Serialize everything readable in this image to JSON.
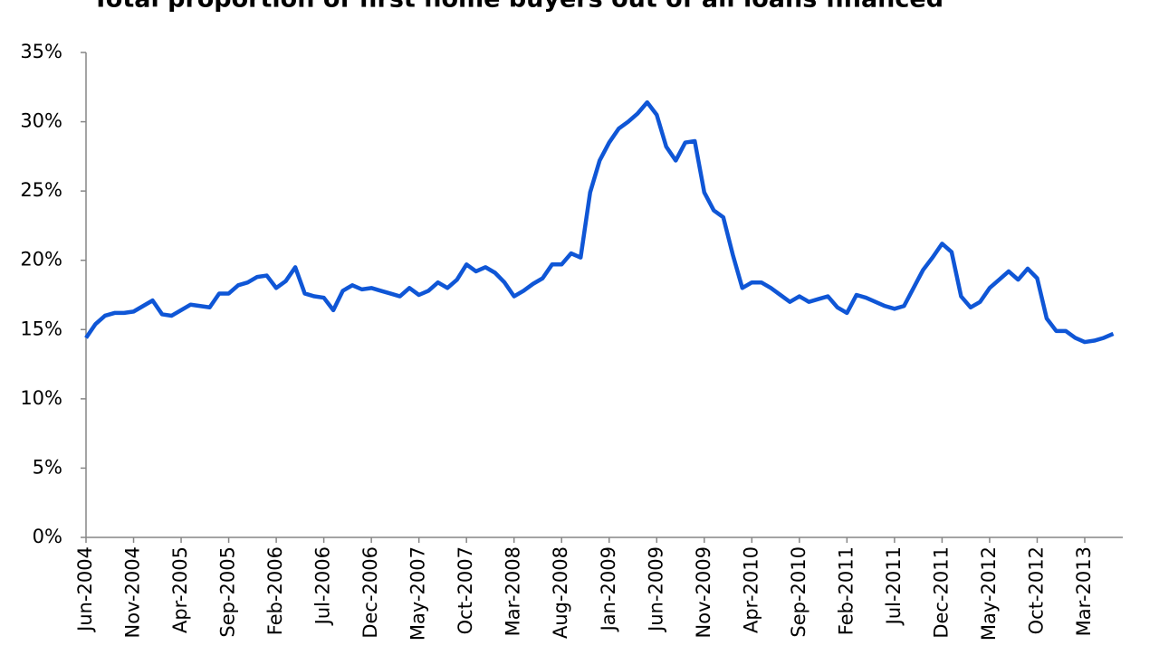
{
  "chart_data": {
    "type": "line",
    "title": "Total proportion of first home buyers out of all loans financed",
    "categories": [
      "Jun-2004",
      null,
      null,
      null,
      null,
      "Nov-2004",
      null,
      null,
      null,
      null,
      "Apr-2005",
      null,
      null,
      null,
      null,
      "Sep-2005",
      null,
      null,
      null,
      null,
      "Feb-2006",
      null,
      null,
      null,
      null,
      "Jul-2006",
      null,
      null,
      null,
      null,
      "Dec-2006",
      null,
      null,
      null,
      null,
      "May-2007",
      null,
      null,
      null,
      null,
      "Oct-2007",
      null,
      null,
      null,
      null,
      "Mar-2008",
      null,
      null,
      null,
      null,
      "Aug-2008",
      null,
      null,
      null,
      null,
      "Jan-2009",
      null,
      null,
      null,
      null,
      "Jun-2009",
      null,
      null,
      null,
      null,
      "Nov-2009",
      null,
      null,
      null,
      null,
      "Apr-2010",
      null,
      null,
      null,
      null,
      "Sep-2010",
      null,
      null,
      null,
      null,
      "Feb-2011",
      null,
      null,
      null,
      null,
      "Jul-2011",
      null,
      null,
      null,
      null,
      "Dec-2011",
      null,
      null,
      null,
      null,
      "May-2012",
      null,
      null,
      null,
      null,
      "Oct-2012",
      null,
      null,
      null,
      null,
      "Mar-2013",
      null,
      null,
      null
    ],
    "series": [
      {
        "color": "#0f56d6",
        "values": [
          14.4,
          15.4,
          16.0,
          16.2,
          16.2,
          16.3,
          16.7,
          17.1,
          16.1,
          16.0,
          16.4,
          16.8,
          16.7,
          16.6,
          17.6,
          17.6,
          18.2,
          18.4,
          18.8,
          18.9,
          18.0,
          18.5,
          19.5,
          17.6,
          17.4,
          17.3,
          16.4,
          17.8,
          18.2,
          17.9,
          18.0,
          17.8,
          17.6,
          17.4,
          18.0,
          17.5,
          17.8,
          18.4,
          18.0,
          18.6,
          19.7,
          19.2,
          19.5,
          19.1,
          18.4,
          17.4,
          17.8,
          18.3,
          18.7,
          19.7,
          19.7,
          20.5,
          20.2,
          24.9,
          27.2,
          28.5,
          29.5,
          30.0,
          30.6,
          31.4,
          30.5,
          28.2,
          27.2,
          28.5,
          28.6,
          24.9,
          23.6,
          23.1,
          20.4,
          18.0,
          18.4,
          18.4,
          18.0,
          17.5,
          17.0,
          17.4,
          17.0,
          17.2,
          17.4,
          16.6,
          16.2,
          17.5,
          17.3,
          17.0,
          16.7,
          16.5,
          16.7,
          18.0,
          19.3,
          20.2,
          21.2,
          20.6,
          17.4,
          16.6,
          17.0,
          18.0,
          18.6,
          19.2,
          18.6,
          19.4,
          18.7,
          15.8,
          14.9,
          14.9,
          14.4,
          14.1,
          14.2,
          14.4,
          14.7
        ]
      }
    ],
    "ylim": [
      0,
      35
    ],
    "yticks": [
      {
        "value": 0,
        "label": "0%"
      },
      {
        "value": 5,
        "label": "5%"
      },
      {
        "value": 10,
        "label": "10%"
      },
      {
        "value": 15,
        "label": "15%"
      },
      {
        "value": 20,
        "label": "20%"
      },
      {
        "value": 25,
        "label": "25%"
      },
      {
        "value": 30,
        "label": "30%"
      },
      {
        "value": 35,
        "label": "35%"
      }
    ],
    "grid": false
  }
}
